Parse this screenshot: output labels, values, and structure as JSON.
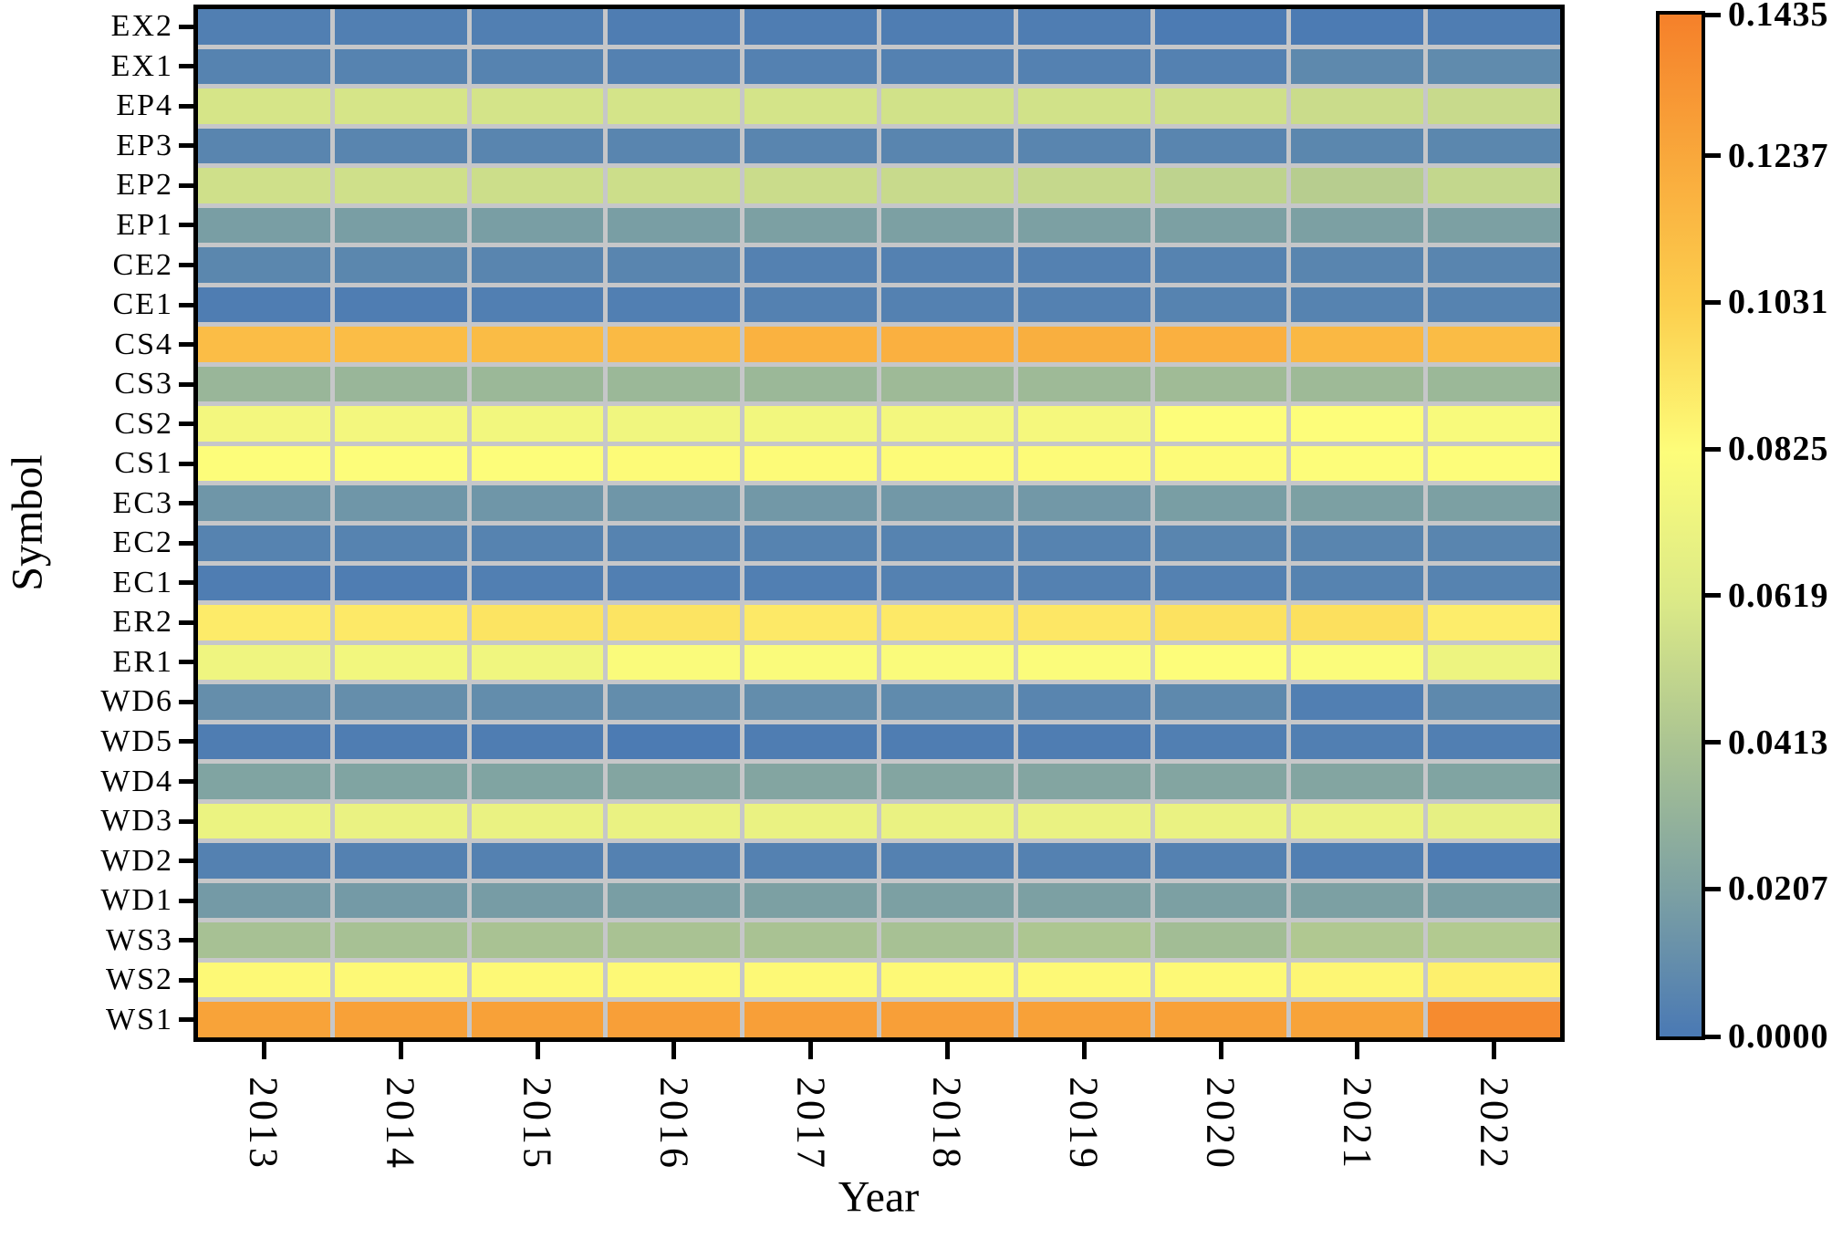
{
  "figure": {
    "background": "#ffffff",
    "axis_border_color": "#000000",
    "grid_line_color": "#c6c7c9",
    "text_color": "#000000"
  },
  "chart_data": {
    "type": "heatmap",
    "title": "",
    "xlabel": "Year",
    "ylabel": "Symbol",
    "x": [
      "2013",
      "2014",
      "2015",
      "2016",
      "2017",
      "2018",
      "2019",
      "2020",
      "2021",
      "2022"
    ],
    "y": [
      "EX2",
      "EX1",
      "EP4",
      "EP3",
      "EP2",
      "EP1",
      "CE2",
      "CE1",
      "CS4",
      "CS3",
      "CS2",
      "CS1",
      "EC3",
      "EC2",
      "EC1",
      "ER2",
      "ER1",
      "WD6",
      "WD5",
      "WD4",
      "WD3",
      "WD2",
      "WD1",
      "WS3",
      "WS2",
      "WS1"
    ],
    "vmin": 0.0,
    "vmax": 0.1435,
    "grid": true,
    "values": [
      [
        0.003,
        0.003,
        0.003,
        0.002,
        0.002,
        0.002,
        0.002,
        0.001,
        0.001,
        0.002
      ],
      [
        0.005,
        0.005,
        0.005,
        0.004,
        0.004,
        0.004,
        0.004,
        0.004,
        0.008,
        0.009
      ],
      [
        0.059,
        0.059,
        0.058,
        0.058,
        0.058,
        0.057,
        0.057,
        0.056,
        0.054,
        0.053
      ],
      [
        0.006,
        0.006,
        0.006,
        0.006,
        0.006,
        0.006,
        0.006,
        0.006,
        0.007,
        0.007
      ],
      [
        0.056,
        0.056,
        0.055,
        0.055,
        0.054,
        0.053,
        0.052,
        0.049,
        0.046,
        0.051
      ],
      [
        0.019,
        0.019,
        0.019,
        0.019,
        0.02,
        0.02,
        0.02,
        0.02,
        0.02,
        0.02
      ],
      [
        0.007,
        0.007,
        0.006,
        0.006,
        0.004,
        0.004,
        0.004,
        0.005,
        0.006,
        0.006
      ],
      [
        0.002,
        0.002,
        0.003,
        0.003,
        0.004,
        0.004,
        0.004,
        0.005,
        0.005,
        0.005
      ],
      [
        0.112,
        0.112,
        0.113,
        0.114,
        0.118,
        0.119,
        0.12,
        0.119,
        0.115,
        0.113
      ],
      [
        0.033,
        0.033,
        0.034,
        0.034,
        0.034,
        0.035,
        0.035,
        0.036,
        0.035,
        0.034
      ],
      [
        0.076,
        0.076,
        0.075,
        0.074,
        0.075,
        0.076,
        0.077,
        0.082,
        0.082,
        0.079
      ],
      [
        0.082,
        0.082,
        0.082,
        0.083,
        0.083,
        0.083,
        0.083,
        0.083,
        0.082,
        0.082
      ],
      [
        0.015,
        0.015,
        0.015,
        0.015,
        0.016,
        0.016,
        0.016,
        0.019,
        0.02,
        0.02
      ],
      [
        0.005,
        0.005,
        0.005,
        0.005,
        0.005,
        0.005,
        0.005,
        0.006,
        0.006,
        0.006
      ],
      [
        0.002,
        0.002,
        0.003,
        0.003,
        0.003,
        0.004,
        0.004,
        0.004,
        0.005,
        0.005
      ],
      [
        0.09,
        0.091,
        0.093,
        0.093,
        0.091,
        0.091,
        0.092,
        0.094,
        0.095,
        0.089
      ],
      [
        0.073,
        0.075,
        0.074,
        0.08,
        0.08,
        0.08,
        0.081,
        0.082,
        0.081,
        0.072
      ],
      [
        0.011,
        0.011,
        0.01,
        0.01,
        0.01,
        0.009,
        0.006,
        0.008,
        0.003,
        0.008
      ],
      [
        0.002,
        0.002,
        0.002,
        0.001,
        0.002,
        0.002,
        0.002,
        0.003,
        0.003,
        0.003
      ],
      [
        0.022,
        0.022,
        0.022,
        0.023,
        0.023,
        0.023,
        0.023,
        0.023,
        0.023,
        0.022
      ],
      [
        0.071,
        0.07,
        0.07,
        0.07,
        0.07,
        0.07,
        0.07,
        0.07,
        0.07,
        0.068
      ],
      [
        0.004,
        0.004,
        0.004,
        0.004,
        0.004,
        0.004,
        0.004,
        0.004,
        0.003,
        0.001
      ],
      [
        0.017,
        0.017,
        0.018,
        0.019,
        0.02,
        0.02,
        0.02,
        0.02,
        0.02,
        0.019
      ],
      [
        0.039,
        0.039,
        0.04,
        0.04,
        0.04,
        0.039,
        0.042,
        0.037,
        0.043,
        0.044
      ],
      [
        0.084,
        0.084,
        0.084,
        0.084,
        0.084,
        0.084,
        0.084,
        0.084,
        0.085,
        0.088
      ],
      [
        0.126,
        0.127,
        0.127,
        0.128,
        0.128,
        0.128,
        0.127,
        0.127,
        0.126,
        0.138
      ]
    ],
    "colormap_stops": [
      {
        "t": 0.0,
        "color": "#4a79b4"
      },
      {
        "t": 0.1429,
        "color": "#7da1a3"
      },
      {
        "t": 0.2857,
        "color": "#abc492"
      },
      {
        "t": 0.4286,
        "color": "#dcea87"
      },
      {
        "t": 0.5714,
        "color": "#fdfd7a"
      },
      {
        "t": 0.7143,
        "color": "#fccf4e"
      },
      {
        "t": 0.8571,
        "color": "#f9a93c"
      },
      {
        "t": 1.0,
        "color": "#f5802a"
      }
    ],
    "colorbar": {
      "position": "right",
      "tick_labels": [
        "0.1435",
        "0.1237",
        "0.1031",
        "0.0825",
        "0.0619",
        "0.0413",
        "0.0207",
        "0.0000"
      ],
      "tick_values": [
        0.1435,
        0.1237,
        0.1031,
        0.0825,
        0.0619,
        0.0413,
        0.0207,
        0.0
      ]
    }
  }
}
